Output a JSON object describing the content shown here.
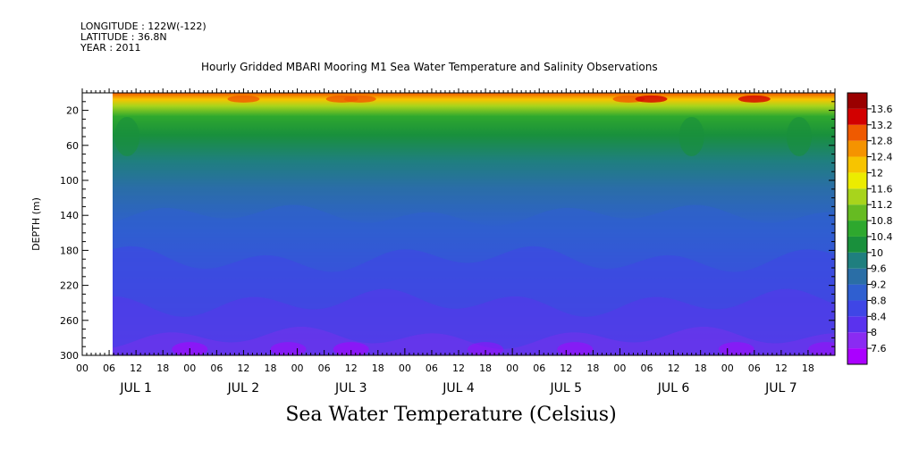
{
  "header": {
    "longitude": "LONGITUDE : 122W(-122)",
    "latitude": "LATITUDE : 36.8N",
    "year": "YEAR : 2011"
  },
  "chart_data": {
    "type": "heatmap",
    "title": "Hourly Gridded MBARI Mooring M1 Sea Water Temperature and Salinity Observations",
    "xlabel": "Sea Water Temperature (Celsius)",
    "ylabel": "DEPTH (m)",
    "x_range_hours": [
      0,
      168
    ],
    "data_start_hour": 6,
    "ylim": [
      300,
      0
    ],
    "y_ticks": [
      20,
      60,
      100,
      140,
      180,
      220,
      260,
      300
    ],
    "x_hour_labels": [
      "00",
      "06",
      "12",
      "18",
      "00",
      "06",
      "12",
      "18",
      "00",
      "06",
      "12",
      "18",
      "00",
      "06",
      "12",
      "18",
      "00",
      "06",
      "12",
      "18",
      "00",
      "06",
      "12",
      "18",
      "00",
      "06",
      "12",
      "18"
    ],
    "day_labels": [
      "JUL 1",
      "JUL 2",
      "JUL 3",
      "JUL 4",
      "JUL 5",
      "JUL 6",
      "JUL 7"
    ],
    "colorbar_levels": [
      "7.6",
      "8",
      "8.4",
      "8.8",
      "9.2",
      "9.6",
      "10",
      "10.4",
      "10.8",
      "11.2",
      "11.6",
      "12",
      "12.4",
      "12.8",
      "13.2",
      "13.6"
    ],
    "colorbar_colors": [
      "#aa00ff",
      "#8a2bf2",
      "#5a32ee",
      "#3f46e6",
      "#2f5fd0",
      "#2a6ea6",
      "#1f7f7f",
      "#19903c",
      "#2ea82e",
      "#66bb22",
      "#a8d41c",
      "#ecec00",
      "#f7c400",
      "#f59300",
      "#ef5a00",
      "#d20000",
      "#9a0000"
    ],
    "depth_profile": [
      {
        "depth": 12,
        "value": 12.8
      },
      {
        "depth": 20,
        "value": 11.6
      },
      {
        "depth": 30,
        "value": 10.8
      },
      {
        "depth": 45,
        "value": 10.2
      },
      {
        "depth": 60,
        "value": 9.8
      },
      {
        "depth": 80,
        "value": 9.4
      },
      {
        "depth": 100,
        "value": 9.2
      },
      {
        "depth": 140,
        "value": 9.0
      },
      {
        "depth": 180,
        "value": 8.8
      },
      {
        "depth": 220,
        "value": 8.5
      },
      {
        "depth": 260,
        "value": 8.3
      },
      {
        "depth": 300,
        "value": 7.9
      }
    ]
  }
}
